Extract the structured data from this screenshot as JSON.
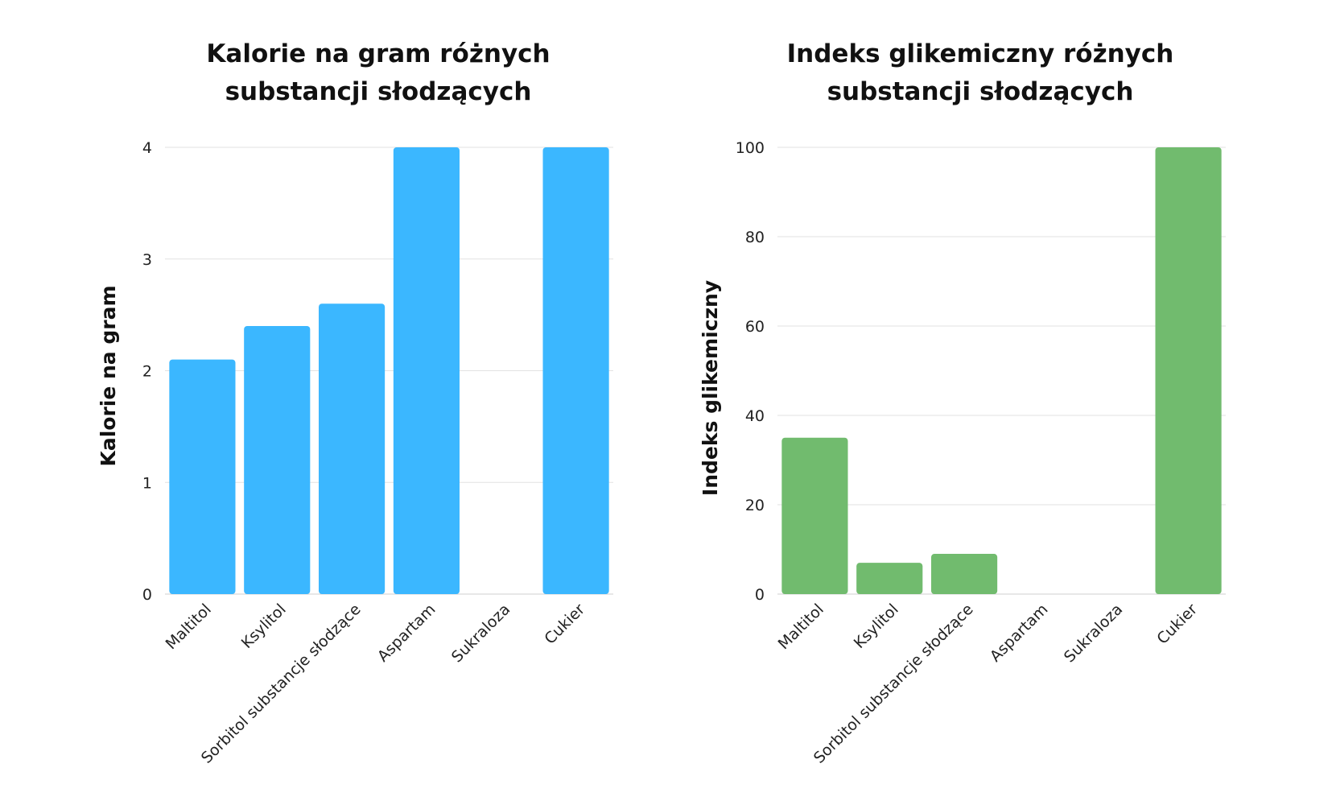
{
  "chart_data": [
    {
      "type": "bar",
      "title_lines": [
        "Kalorie na gram różnych",
        "substancji słodzących"
      ],
      "ylabel": "Kalorie na gram",
      "categories": [
        "Maltitol",
        "Ksylitol",
        "Sorbitol substancje słodzące",
        "Aspartam",
        "Sukraloza",
        "Cukier"
      ],
      "values": [
        2.1,
        2.4,
        2.6,
        4,
        0,
        4
      ],
      "ylim": [
        0,
        4
      ],
      "yticks": [
        0,
        1,
        2,
        3,
        4
      ],
      "grid": true,
      "color": "#3bb7ff"
    },
    {
      "type": "bar",
      "title_lines": [
        "Indeks glikemiczny różnych",
        "substancji słodzących"
      ],
      "ylabel": "Indeks glikemiczny",
      "categories": [
        "Maltitol",
        "Ksylitol",
        "Sorbitol substancje słodzące",
        "Aspartam",
        "Sukraloza",
        "Cukier"
      ],
      "values": [
        35,
        7,
        9,
        0,
        0,
        100
      ],
      "ylim": [
        0,
        100
      ],
      "yticks": [
        0,
        20,
        40,
        60,
        80,
        100
      ],
      "grid": true,
      "color": "#71bb6e"
    }
  ]
}
